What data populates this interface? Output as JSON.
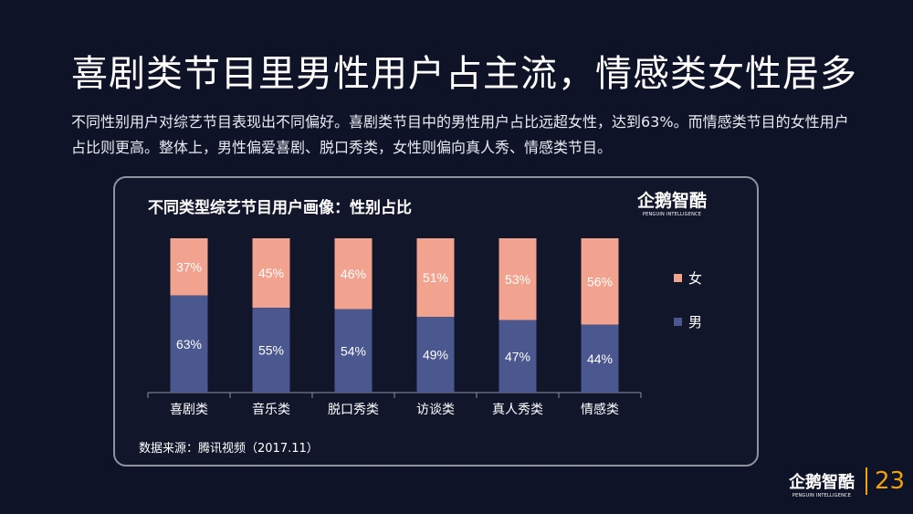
{
  "page": {
    "title": "喜剧类节目里男性用户占主流，情感类女性居多",
    "description": "不同性别用户对综艺节目表现出不同偏好。喜剧类节目中的男性用户占比远超女性，达到63%。而情感类节目的女性用户占比则更高。整体上，男性偏爱喜剧、脱口秀类，女性则偏向真人秀、情感类节目。",
    "brand": {
      "name": "企鹅智酷",
      "subtitle": "PENGUIN INTELLIGENCE"
    },
    "page_number": "23"
  },
  "colors": {
    "background": "#0f1327",
    "card_border": "#8f939d",
    "male": "#4b578f",
    "female": "#f2a38f",
    "accent": "#f0a10c"
  },
  "chart_data": {
    "type": "bar",
    "stacked": true,
    "title": "不同类型综艺节目用户画像：性别占比",
    "categories": [
      "喜剧类",
      "音乐类",
      "脱口秀类",
      "访谈类",
      "真人秀类",
      "情感类"
    ],
    "series": [
      {
        "name": "男",
        "values": [
          63,
          55,
          54,
          49,
          47,
          44
        ],
        "labels": [
          "63%",
          "55%",
          "54%",
          "49%",
          "47%",
          "44%"
        ]
      },
      {
        "name": "女",
        "values": [
          37,
          45,
          46,
          51,
          53,
          56
        ],
        "labels": [
          "37%",
          "45%",
          "46%",
          "51%",
          "53%",
          "56%"
        ]
      }
    ],
    "xlabel": "",
    "ylabel": "",
    "ylim": [
      0,
      100
    ],
    "grid": false,
    "legend": "right",
    "source": "数据来源：腾讯视频（2017.11）"
  }
}
